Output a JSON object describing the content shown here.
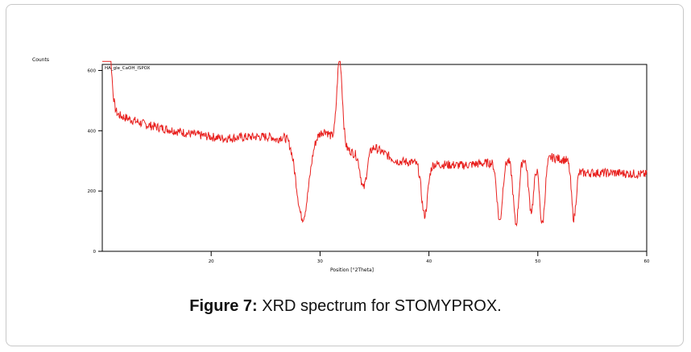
{
  "caption": {
    "label": "Figure 7:",
    "text": " XRD spectrum for STOMYPROX."
  },
  "chart_data": {
    "type": "line",
    "ylabel": "Counts",
    "xlabel": "Position [°2Theta]",
    "series_name": "HA_gle_CaOH_ISPOX",
    "line_color": "#e8201e",
    "xlim": [
      10,
      60
    ],
    "ylim": [
      0,
      620
    ],
    "x_ticks": [
      20,
      30,
      40,
      50,
      60
    ],
    "y_ticks": [
      0,
      200,
      400,
      600
    ],
    "peaks": [
      {
        "x": 10.3,
        "y": 490,
        "w": 0.5
      },
      {
        "x": 26.0,
        "y": 370,
        "w": 0.25
      },
      {
        "x": 28.4,
        "y": 110,
        "w": 0.8
      },
      {
        "x": 31.8,
        "y": 640,
        "w": 0.35
      },
      {
        "x": 32.9,
        "y": 330,
        "w": 0.5
      },
      {
        "x": 34.0,
        "y": 210,
        "w": 0.4
      },
      {
        "x": 39.6,
        "y": 120,
        "w": 0.4
      },
      {
        "x": 46.5,
        "y": 100,
        "w": 0.35
      },
      {
        "x": 48.0,
        "y": 90,
        "w": 0.35
      },
      {
        "x": 49.4,
        "y": 135,
        "w": 0.35
      },
      {
        "x": 50.4,
        "y": 90,
        "w": 0.35
      },
      {
        "x": 53.3,
        "y": 110,
        "w": 0.3
      }
    ],
    "baseline": [
      {
        "x": 10,
        "y": 470
      },
      {
        "x": 14,
        "y": 420
      },
      {
        "x": 18,
        "y": 390
      },
      {
        "x": 21,
        "y": 375
      },
      {
        "x": 24,
        "y": 380
      },
      {
        "x": 26.5,
        "y": 380
      },
      {
        "x": 29,
        "y": 385
      },
      {
        "x": 30.5,
        "y": 400
      },
      {
        "x": 33,
        "y": 310
      },
      {
        "x": 35,
        "y": 345
      },
      {
        "x": 37,
        "y": 300
      },
      {
        "x": 40,
        "y": 290
      },
      {
        "x": 43,
        "y": 285
      },
      {
        "x": 46,
        "y": 295
      },
      {
        "x": 50,
        "y": 320
      },
      {
        "x": 53,
        "y": 300
      },
      {
        "x": 54,
        "y": 260
      },
      {
        "x": 57,
        "y": 260
      },
      {
        "x": 60,
        "y": 255
      }
    ]
  }
}
